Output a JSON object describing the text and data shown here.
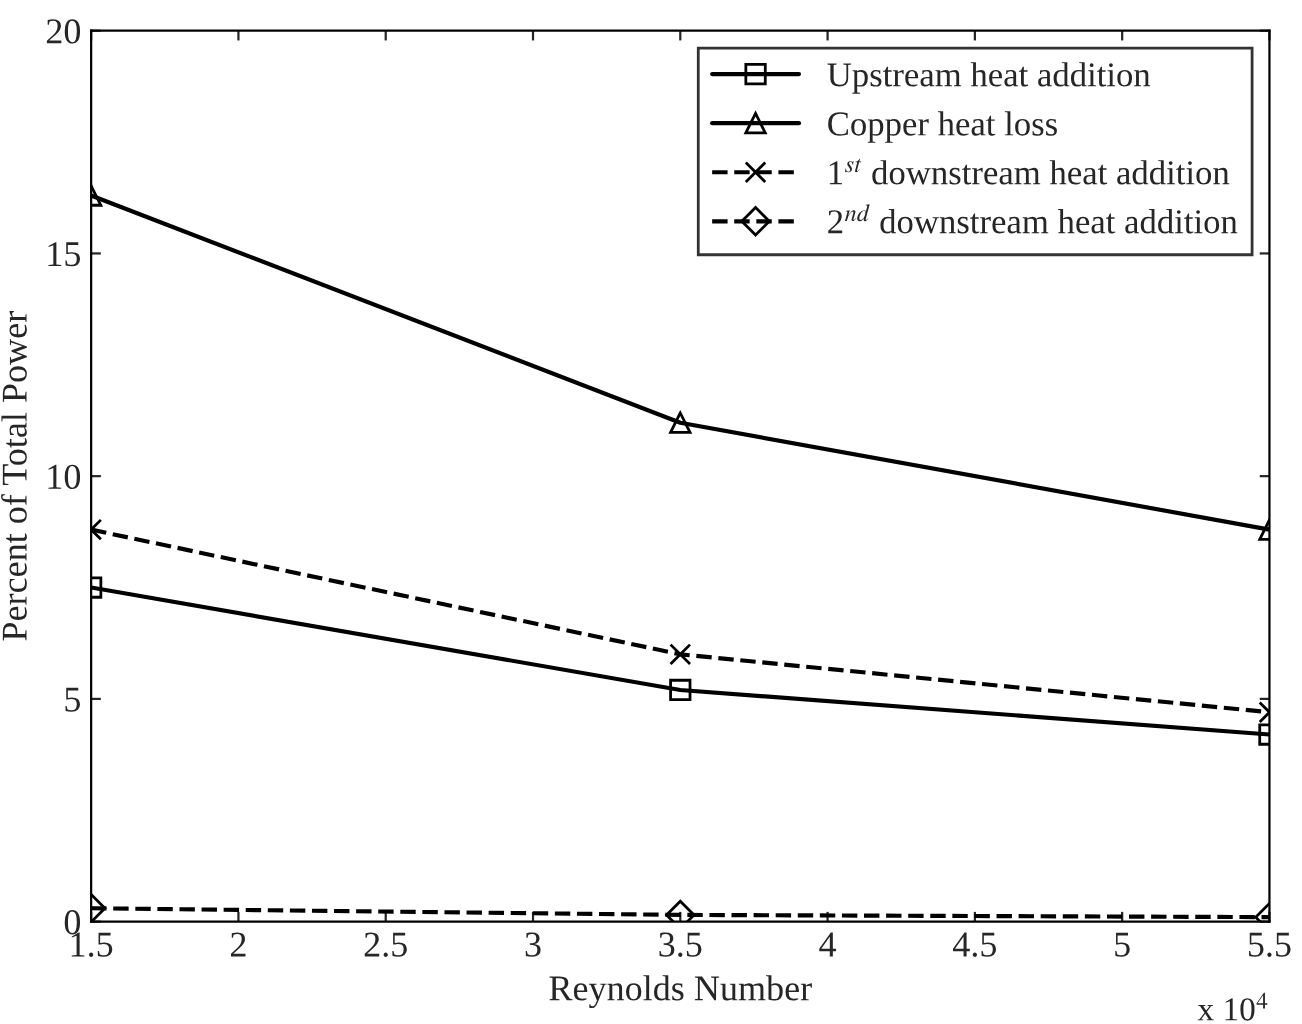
{
  "chart_data": {
    "type": "line",
    "xlabel": "Reynolds Number",
    "ylabel": "Percent of Total Power",
    "x": [
      1.5,
      3.5,
      5.5
    ],
    "xlim": [
      1.5,
      5.5
    ],
    "xticks": [
      1.5,
      2,
      2.5,
      3,
      3.5,
      4,
      4.5,
      5,
      5.5
    ],
    "ylim": [
      0,
      20
    ],
    "yticks": [
      0,
      5,
      10,
      15,
      20
    ],
    "grid": false,
    "legend": "top right",
    "annotations": [
      "x 10$^{4}$"
    ],
    "series": [
      {
        "name": "Upstream heat addition",
        "color": "#000000",
        "marker": "square",
        "line_style": "solid",
        "values": [
          7.5,
          5.2,
          4.2
        ]
      },
      {
        "name": "Copper heat loss",
        "color": "#000000",
        "marker": "triangle",
        "line_style": "solid",
        "values": [
          16.3,
          11.2,
          8.8
        ]
      },
      {
        "name": "1$^{st}$ downstream heat addition",
        "color": "#000000",
        "marker": "cross",
        "line_style": "dashed",
        "values": [
          8.8,
          6.0,
          4.7
        ]
      },
      {
        "name": "2$^{nd}$ downstream heat addition",
        "color": "#000000",
        "marker": "diamond",
        "line_style": "dashed",
        "values": [
          0.3,
          0.15,
          0.1
        ]
      }
    ]
  }
}
